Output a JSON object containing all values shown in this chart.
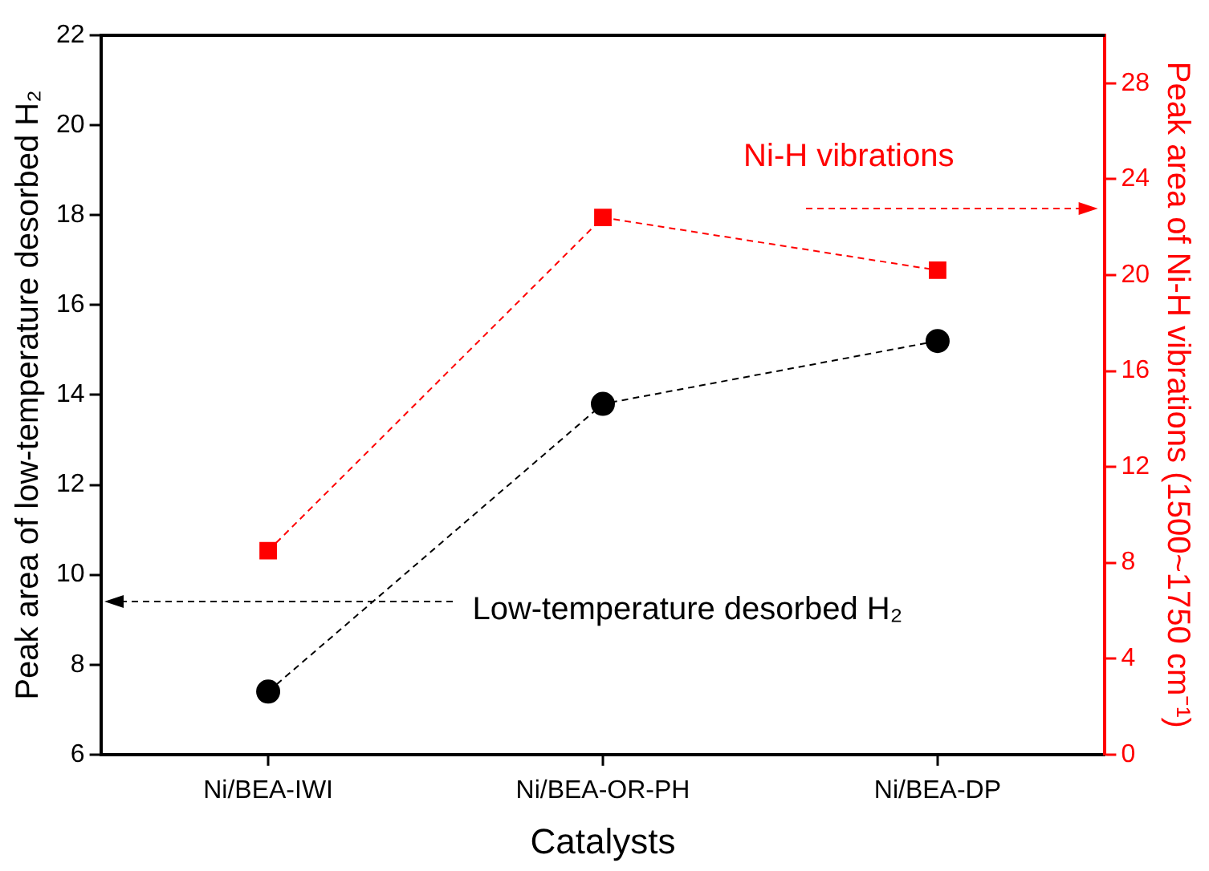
{
  "chart_data": {
    "type": "line",
    "xlabel": "Catalysts",
    "ylabel": "Peak area of low-temperature desorbed H₂",
    "y2label": "Peak area of Ni-H vibrations (1500~1750 cm⁻¹)",
    "categories": [
      "Ni/BEA-IWI",
      "Ni/BEA-OR-PH",
      "Ni/BEA-DP"
    ],
    "series": [
      {
        "name": "Low-temperature desorbed H₂",
        "color": "#000000",
        "values": [
          7.4,
          13.8,
          15.2
        ],
        "marker": "circle",
        "line_style": "dashed"
      },
      {
        "name": "Ni-H vibrations",
        "color": "#ff0000",
        "values": [
          8.5,
          22.4,
          20.2
        ],
        "marker": "square",
        "line_style": "dashed",
        "axis": "y2"
      }
    ],
    "ylim": [
      6,
      22
    ],
    "yticks": [
      6,
      8,
      10,
      12,
      14,
      16,
      18,
      20,
      22
    ],
    "y2lim": [
      0,
      30
    ],
    "y2ticks": [
      0,
      4,
      8,
      12,
      16,
      20,
      24,
      28
    ],
    "grid": false,
    "legend": false
  }
}
